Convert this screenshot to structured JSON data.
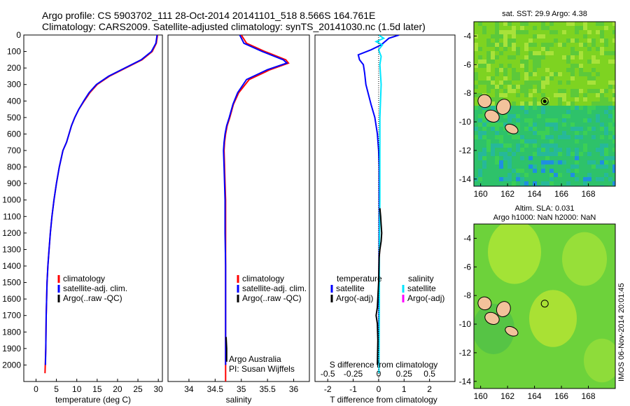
{
  "header": {
    "line1": "Argo profile: CS 5903702_111 28-Oct-2014 20141101_518 8.566S 164.761E",
    "line2": "Climatology: CARS2009. Satellite-adjusted climatology: synTS_20141030.nc (1.5d later)"
  },
  "colors": {
    "climatology": "#ff0000",
    "satellite": "#0000ff",
    "argo": "#000000",
    "sat_salinity": "#00e5ff",
    "argo_salinity": "#ff00ff"
  },
  "chart_data": [
    {
      "type": "line",
      "xlabel": "temperature (deg C)",
      "ylabel": "",
      "xlim": [
        -3,
        31
      ],
      "ylim": [
        2100,
        0
      ],
      "xticks": [
        0,
        5,
        10,
        15,
        20,
        25,
        30
      ],
      "yticks": [
        0,
        100,
        200,
        300,
        400,
        500,
        600,
        700,
        800,
        900,
        1000,
        1100,
        1200,
        1300,
        1400,
        1500,
        1600,
        1700,
        1800,
        1900,
        2000
      ],
      "legend": [
        "climatology",
        "satellite-adj. clim.",
        "Argo(..raw -QC)"
      ],
      "series": [
        {
          "name": "climatology",
          "color": "#ff0000",
          "x": [
            29.8,
            29.5,
            28.5,
            26,
            22,
            18,
            15,
            13.2,
            11.8,
            10.5,
            9.5,
            8.7,
            8.1,
            7.5,
            6.6,
            5.7,
            5.0,
            4.4,
            3.9,
            3.5,
            3.2,
            2.9,
            2.7,
            2.6,
            2.5,
            2.4,
            2.2
          ],
          "y": [
            0,
            50,
            100,
            150,
            200,
            250,
            300,
            350,
            400,
            450,
            500,
            550,
            600,
            650,
            700,
            800,
            900,
            1000,
            1100,
            1200,
            1300,
            1400,
            1500,
            1600,
            1700,
            1900,
            2050
          ]
        },
        {
          "name": "satellite-adj. clim.",
          "color": "#0000ff",
          "x": [
            29.7,
            29.4,
            28.3,
            25.8,
            21.8,
            17.8,
            14.8,
            13.0,
            11.7,
            10.5,
            9.5,
            8.7,
            8.1,
            7.5,
            6.6,
            5.7,
            5.0,
            4.4,
            3.9,
            3.5,
            3.2,
            2.9,
            2.7,
            2.6,
            2.5,
            2.4,
            2.3
          ],
          "y": [
            0,
            50,
            100,
            150,
            200,
            250,
            300,
            350,
            400,
            450,
            500,
            550,
            600,
            650,
            700,
            800,
            900,
            1000,
            1100,
            1200,
            1300,
            1400,
            1500,
            1600,
            1700,
            1900,
            2000
          ]
        },
        {
          "name": "Argo(..raw -QC)",
          "color": "#000000",
          "x": [],
          "y": []
        }
      ]
    },
    {
      "type": "line",
      "xlabel": "salinity",
      "xlim": [
        33.6,
        36.3
      ],
      "ylim": [
        2100,
        0
      ],
      "xticks": [
        34,
        34.5,
        35,
        35.5,
        36
      ],
      "legend": [
        "climatology",
        "satellite-adj. clim.",
        "Argo(..raw -QC)"
      ],
      "series": [
        {
          "name": "climatology",
          "color": "#ff0000",
          "x": [
            35.0,
            35.1,
            35.45,
            35.85,
            35.9,
            35.55,
            35.15,
            34.95,
            34.85,
            34.78,
            34.73,
            34.7,
            34.68,
            34.67,
            34.68,
            34.69,
            34.7,
            34.7,
            34.7,
            34.7,
            34.7,
            34.7,
            34.7
          ],
          "y": [
            0,
            50,
            100,
            150,
            170,
            210,
            270,
            350,
            420,
            500,
            550,
            600,
            650,
            700,
            800,
            900,
            1000,
            1200,
            1400,
            1600,
            1800,
            2000,
            2100
          ]
        },
        {
          "name": "satellite-adj. clim.",
          "color": "#0000ff",
          "x": [
            34.97,
            35.05,
            35.4,
            35.8,
            35.87,
            35.5,
            35.1,
            34.93,
            34.84,
            34.77,
            34.72,
            34.69,
            34.67,
            34.66,
            34.67,
            34.68,
            34.69,
            34.69,
            34.7,
            34.7,
            34.7,
            34.7
          ],
          "y": [
            0,
            50,
            100,
            150,
            170,
            210,
            270,
            350,
            420,
            500,
            550,
            600,
            650,
            700,
            800,
            900,
            1000,
            1200,
            1400,
            1600,
            1800,
            2000
          ]
        },
        {
          "name": "Argo(..raw -QC)",
          "color": "#000000",
          "x": [
            34.71,
            34.72,
            34.72
          ],
          "y": [
            1830,
            1900,
            1980
          ]
        }
      ],
      "annotation": [
        "Argo Australia",
        "PI: Susan Wijffels"
      ]
    },
    {
      "type": "line",
      "xlabel": "T difference from climatology",
      "xlabel2": "S difference from climatology",
      "xlim": [
        -2.5,
        3
      ],
      "ylim": [
        2100,
        0
      ],
      "xticks": [
        -2,
        -1,
        0,
        1,
        2
      ],
      "xticks_s": [
        "-0.5",
        "-0.25",
        "0",
        "0.25",
        "0.5"
      ],
      "legend_titles": [
        "temperature",
        "salinity"
      ],
      "legend": [
        "satellite",
        "Argo(-adj)",
        "satellite",
        "Argo(-adj)"
      ],
      "series": [
        {
          "name": "temperature satellite",
          "color": "#0000ff",
          "x": [
            0.8,
            0.4,
            0.1,
            -0.3,
            -0.8,
            -0.75,
            -0.6,
            -0.55,
            -0.5,
            -0.3,
            -0.15,
            -0.05,
            0,
            0.02,
            0.02,
            0.02,
            0.01,
            0.01,
            0.01,
            0.01
          ],
          "y": [
            0,
            20,
            60,
            90,
            120,
            150,
            180,
            230,
            300,
            420,
            500,
            600,
            700,
            800,
            1000,
            1200,
            1400,
            1600,
            1800,
            2000
          ]
        },
        {
          "name": "salinity satellite",
          "color": "#00e5ff",
          "x": [
            0,
            0.2,
            -0.1,
            0.15,
            0.0,
            0.1,
            0.05,
            0.1,
            0.05,
            0.05,
            0.05,
            0.03,
            0.03,
            0.02,
            0.01
          ],
          "y": [
            0,
            20,
            40,
            60,
            90,
            130,
            180,
            300,
            500,
            700,
            1000,
            1300,
            1600,
            1900,
            2050
          ]
        },
        {
          "name": "temperature Argo(-adj)",
          "color": "#000000",
          "x": [
            0.05,
            0.08,
            0.1,
            0.12,
            0.1,
            0.05,
            0.02,
            0.0,
            -0.05,
            -0.1,
            -0.05,
            -0.03,
            -0.05
          ],
          "y": [
            1050,
            1100,
            1150,
            1200,
            1250,
            1300,
            1350,
            1500,
            1650,
            1700,
            1750,
            1850,
            2000
          ]
        }
      ]
    },
    {
      "type": "heatmap",
      "title": "sat. SST: 29.9 Argo: 4.38",
      "xticks": [
        160,
        162,
        164,
        166,
        168
      ],
      "yticks": [
        -4,
        -6,
        -8,
        -10,
        -12,
        -14
      ],
      "xlim": [
        159.5,
        170
      ],
      "ylim": [
        -14.5,
        -3
      ]
    },
    {
      "type": "heatmap",
      "title": "Altim. SLA: 0.031",
      "subtitle": "Argo h1000: NaN h2000: NaN",
      "xticks": [
        160,
        162,
        164,
        166,
        168
      ],
      "yticks": [
        -4,
        -6,
        -8,
        -10,
        -12,
        -14
      ],
      "xlim": [
        159.5,
        170
      ],
      "ylim": [
        -14.5,
        -3
      ]
    }
  ],
  "stamp": "IMOS 06-Nov-2014 20:01:45"
}
